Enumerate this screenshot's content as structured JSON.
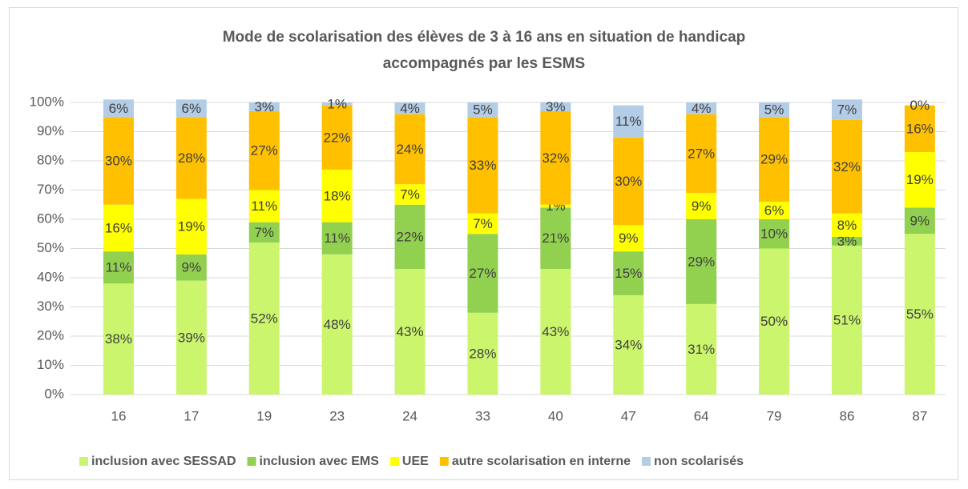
{
  "chart_data": {
    "type": "stacked_bar",
    "title": [
      "Mode de scolarisation des élèves de 3 à 16 ans en situation de handicap",
      "accompagnés par les ESMS"
    ],
    "categories": [
      "16",
      "17",
      "19",
      "23",
      "24",
      "33",
      "40",
      "47",
      "64",
      "79",
      "86",
      "87"
    ],
    "series": [
      {
        "name": "inclusion avec SESSAD",
        "color": "#ccf56e",
        "values": [
          38,
          39,
          52,
          48,
          43,
          28,
          43,
          34,
          31,
          50,
          51,
          55
        ],
        "value_labels": [
          "38%",
          "39%",
          "52%",
          "48%",
          "43%",
          "28%",
          "43%",
          "34%",
          "31%",
          "50%",
          "51%",
          "55%"
        ]
      },
      {
        "name": "inclusion avec EMS",
        "color": "#92d050",
        "values": [
          11,
          9,
          7,
          11,
          22,
          27,
          21,
          15,
          29,
          10,
          3,
          9
        ],
        "value_labels": [
          "11%",
          "9%",
          "7%",
          "11%",
          "22%",
          "27%",
          "21%",
          "15%",
          "29%",
          "10%",
          "3%",
          "9%"
        ]
      },
      {
        "name": "UEE",
        "color": "#ffff00",
        "values": [
          16,
          19,
          11,
          18,
          7,
          7,
          1,
          9,
          9,
          6,
          8,
          19
        ],
        "value_labels": [
          "16%",
          "19%",
          "11%",
          "18%",
          "7%",
          "7%",
          "1%",
          "9%",
          "9%",
          "6%",
          "8%",
          "19%"
        ]
      },
      {
        "name": "autre scolarisation en interne",
        "color": "#ffc000",
        "values": [
          30,
          28,
          27,
          22,
          24,
          33,
          32,
          30,
          27,
          29,
          32,
          16
        ],
        "value_labels": [
          "30%",
          "28%",
          "27%",
          "22%",
          "24%",
          "33%",
          "32%",
          "30%",
          "27%",
          "29%",
          "32%",
          "16%"
        ]
      },
      {
        "name": "non scolarisés",
        "color": "#b4cde6",
        "values": [
          6,
          6,
          3,
          1,
          4,
          5,
          3,
          11,
          4,
          5,
          7,
          0
        ],
        "value_labels": [
          "6%",
          "6%",
          "3%",
          "1%",
          "4%",
          "5%",
          "3%",
          "11%",
          "4%",
          "5%",
          "7%",
          "0%"
        ]
      }
    ],
    "ylim": [
      0,
      100
    ],
    "yticks": [
      {
        "value": 0,
        "label": "0%"
      },
      {
        "value": 10,
        "label": "10%"
      },
      {
        "value": 20,
        "label": "20%"
      },
      {
        "value": 30,
        "label": "30%"
      },
      {
        "value": 40,
        "label": "40%"
      },
      {
        "value": 50,
        "label": "50%"
      },
      {
        "value": 60,
        "label": "60%"
      },
      {
        "value": 70,
        "label": "70%"
      },
      {
        "value": 80,
        "label": "80%"
      },
      {
        "value": 90,
        "label": "90%"
      },
      {
        "value": 100,
        "label": "100%"
      }
    ],
    "grid": true,
    "legend": "bottom"
  }
}
